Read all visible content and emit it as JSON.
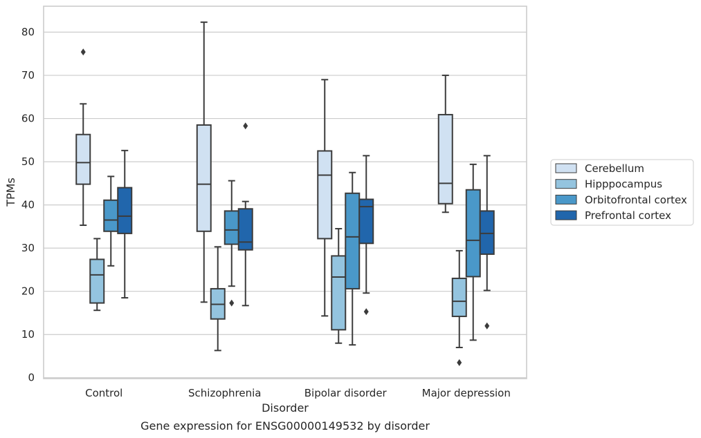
{
  "chart_data": {
    "type": "box",
    "title": "",
    "xlabel": "Disorder",
    "ylabel": "TPMs",
    "caption": "Gene expression for ENSG00000149532 by disorder",
    "ylim": [
      -0.2,
      86
    ],
    "yticks": [
      0,
      10,
      20,
      30,
      40,
      50,
      60,
      70,
      80
    ],
    "grid": "horizontal",
    "legend_position": "right",
    "categories": [
      "Control",
      "Schizophrenia",
      "Bipolar disorder",
      "Major depression"
    ],
    "series": [
      {
        "name": "Cerebellum",
        "color": "#d0e1f2",
        "boxes": [
          {
            "whislo": 35.3,
            "q1": 44.8,
            "med": 49.8,
            "q3": 56.3,
            "whishi": 63.4,
            "fliers": [
              75.4
            ]
          },
          {
            "whislo": 17.5,
            "q1": 33.9,
            "med": 44.8,
            "q3": 58.5,
            "whishi": 82.3,
            "fliers": []
          },
          {
            "whislo": 14.3,
            "q1": 32.2,
            "med": 46.9,
            "q3": 52.5,
            "whishi": 69.0,
            "fliers": []
          },
          {
            "whislo": 38.3,
            "q1": 40.3,
            "med": 45.0,
            "q3": 60.9,
            "whishi": 70.0,
            "fliers": []
          }
        ]
      },
      {
        "name": "Hipppocampus",
        "color": "#94c4df",
        "boxes": [
          {
            "whislo": 15.6,
            "q1": 17.3,
            "med": 23.8,
            "q3": 27.4,
            "whishi": 32.2,
            "fliers": []
          },
          {
            "whislo": 6.3,
            "q1": 13.6,
            "med": 17.0,
            "q3": 20.6,
            "whishi": 30.3,
            "fliers": []
          },
          {
            "whislo": 8.0,
            "q1": 11.1,
            "med": 23.3,
            "q3": 28.2,
            "whishi": 34.5,
            "fliers": []
          },
          {
            "whislo": 7.0,
            "q1": 14.2,
            "med": 17.7,
            "q3": 23.0,
            "whishi": 29.4,
            "fliers": [
              3.5
            ]
          }
        ]
      },
      {
        "name": "Orbitofrontal cortex",
        "color": "#4a98c9",
        "boxes": [
          {
            "whislo": 25.9,
            "q1": 33.9,
            "med": 36.5,
            "q3": 41.1,
            "whishi": 46.6,
            "fliers": []
          },
          {
            "whislo": 21.2,
            "q1": 30.9,
            "med": 34.2,
            "q3": 38.6,
            "whishi": 45.6,
            "fliers": [
              17.3
            ]
          },
          {
            "whislo": 7.6,
            "q1": 20.6,
            "med": 32.6,
            "q3": 42.7,
            "whishi": 47.5,
            "fliers": []
          },
          {
            "whislo": 8.7,
            "q1": 23.4,
            "med": 31.8,
            "q3": 43.5,
            "whishi": 49.4,
            "fliers": []
          }
        ]
      },
      {
        "name": "Prefrontal cortex",
        "color": "#2166ac",
        "boxes": [
          {
            "whislo": 18.5,
            "q1": 33.4,
            "med": 37.4,
            "q3": 44.0,
            "whishi": 52.6,
            "fliers": []
          },
          {
            "whislo": 16.7,
            "q1": 29.6,
            "med": 31.4,
            "q3": 39.1,
            "whishi": 40.8,
            "fliers": [
              58.3
            ]
          },
          {
            "whislo": 19.6,
            "q1": 31.1,
            "med": 39.6,
            "q3": 41.3,
            "whishi": 51.4,
            "fliers": [
              15.3
            ]
          },
          {
            "whislo": 20.2,
            "q1": 28.6,
            "med": 33.4,
            "q3": 38.6,
            "whishi": 51.4,
            "fliers": [
              12.0
            ]
          }
        ]
      }
    ]
  }
}
